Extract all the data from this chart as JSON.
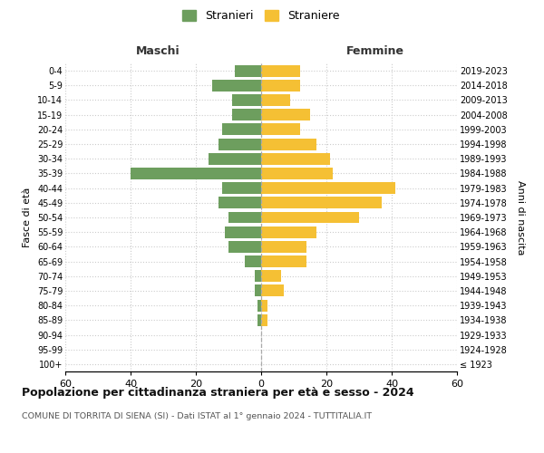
{
  "age_groups": [
    "100+",
    "95-99",
    "90-94",
    "85-89",
    "80-84",
    "75-79",
    "70-74",
    "65-69",
    "60-64",
    "55-59",
    "50-54",
    "45-49",
    "40-44",
    "35-39",
    "30-34",
    "25-29",
    "20-24",
    "15-19",
    "10-14",
    "5-9",
    "0-4"
  ],
  "birth_years": [
    "≤ 1923",
    "1924-1928",
    "1929-1933",
    "1934-1938",
    "1939-1943",
    "1944-1948",
    "1949-1953",
    "1954-1958",
    "1959-1963",
    "1964-1968",
    "1969-1973",
    "1974-1978",
    "1979-1983",
    "1984-1988",
    "1989-1993",
    "1994-1998",
    "1999-2003",
    "2004-2008",
    "2009-2013",
    "2014-2018",
    "2019-2023"
  ],
  "males": [
    0,
    0,
    0,
    1,
    1,
    2,
    2,
    5,
    10,
    11,
    10,
    13,
    12,
    40,
    16,
    13,
    12,
    9,
    9,
    15,
    8
  ],
  "females": [
    0,
    0,
    0,
    2,
    2,
    7,
    6,
    14,
    14,
    17,
    30,
    37,
    41,
    22,
    21,
    17,
    12,
    15,
    9,
    12,
    12
  ],
  "male_color": "#6d9e5e",
  "female_color": "#f5c034",
  "background_color": "#ffffff",
  "grid_color": "#cccccc",
  "title": "Popolazione per cittadinanza straniera per età e sesso - 2024",
  "subtitle": "COMUNE DI TORRITA DI SIENA (SI) - Dati ISTAT al 1° gennaio 2024 - TUTTITALIA.IT",
  "xlabel_left": "Maschi",
  "xlabel_right": "Femmine",
  "ylabel_left": "Fasce di età",
  "ylabel_right": "Anni di nascita",
  "legend_male": "Stranieri",
  "legend_female": "Straniere",
  "xlim": 60,
  "bar_height": 0.8
}
